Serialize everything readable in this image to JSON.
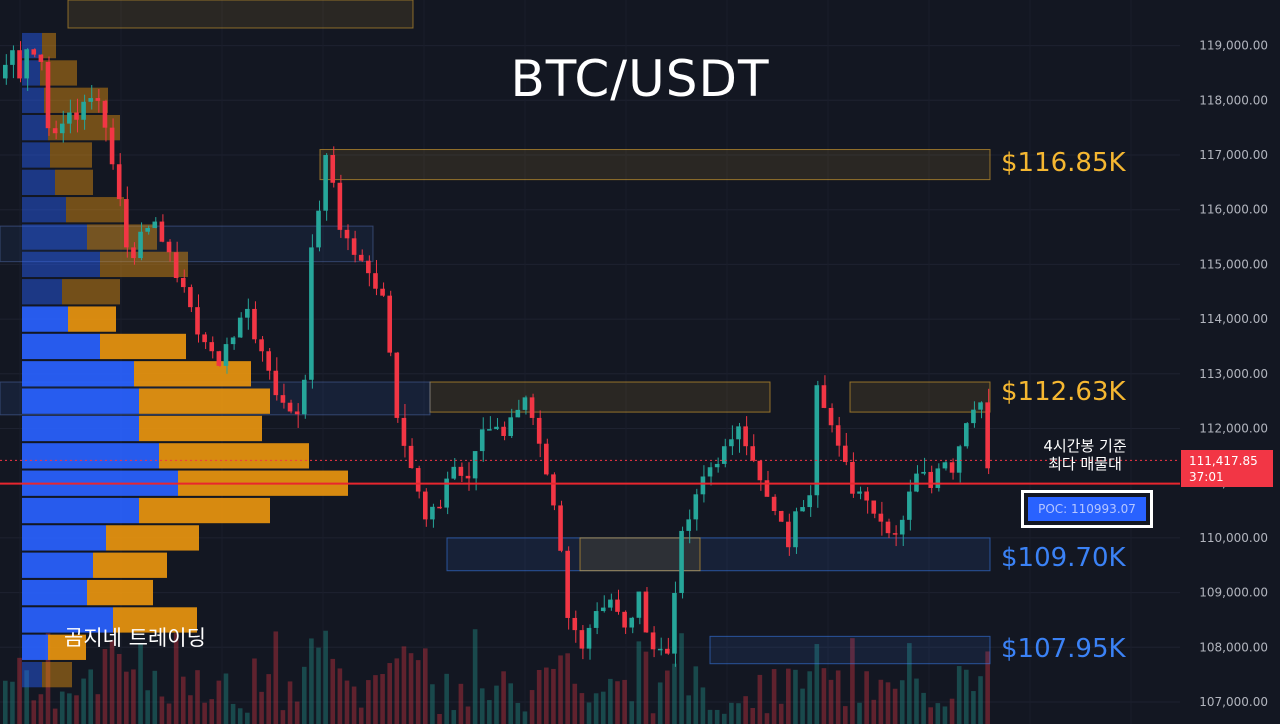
{
  "header": {
    "title": "BTC/USDT"
  },
  "watermark": "곰지네 트레이딩",
  "zones": [
    {
      "label": "$116.85K",
      "color": "#f5b731"
    },
    {
      "label": "$112.63K",
      "color": "#f5b731"
    },
    {
      "label": "$109.70K",
      "color": "#3b82f6"
    },
    {
      "label": "$107.95K",
      "color": "#3b82f6"
    }
  ],
  "annotation": {
    "line1": "4시간봉 기준",
    "line2": "최다 매물대"
  },
  "poc": {
    "label": "POC: 110993.07",
    "value": 110993.07
  },
  "price_tag": {
    "price": "111,417.85",
    "countdown": "37:01"
  },
  "chart_data": {
    "type": "candlestick",
    "symbol": "BTC/USDT",
    "timeframe_note": "4시간봉 기준",
    "y_axis": {
      "ticks": [
        107000,
        108000,
        109000,
        110000,
        111000,
        112000,
        113000,
        114000,
        115000,
        116000,
        117000,
        118000,
        119000
      ],
      "tick_labels": [
        "107,000.00",
        "108,000.00",
        "109,000.00",
        "110,000.00",
        "111,000.00",
        "112,000.00",
        "113,000.00",
        "114,000.00",
        "115,000.00",
        "116,000.00",
        "117,000.00",
        "118,000.00",
        "119,000.00"
      ],
      "range": [
        106600,
        119700
      ]
    },
    "current_price": 111417.85,
    "poc_price": 110993.07,
    "zones": [
      {
        "label": "$116.85K",
        "low": 116550,
        "high": 117100,
        "kind": "resistance"
      },
      {
        "label": "$112.63K",
        "low": 112300,
        "high": 112850,
        "kind": "resistance"
      },
      {
        "label": "$109.70K",
        "low": 109400,
        "high": 110000,
        "kind": "support"
      },
      {
        "label": "$107.95K",
        "low": 107700,
        "high": 108200,
        "kind": "support"
      }
    ],
    "close_path": [
      118400,
      118900,
      118500,
      119000,
      118700,
      117600,
      117300,
      117800,
      117700,
      117900,
      118100,
      117500,
      116900,
      115400,
      115100,
      115600,
      115900,
      115300,
      115100,
      114600,
      114100,
      113800,
      113400,
      113100,
      113600,
      113900,
      114200,
      113700,
      113100,
      112700,
      112400,
      112300,
      113000,
      115200,
      116900,
      116500,
      115700,
      115200,
      115000,
      114800,
      114500,
      113400,
      112300,
      111300,
      110800,
      110300,
      110600,
      111100,
      111300,
      111000,
      111600,
      112000,
      112100,
      111800,
      112300,
      112500,
      112100,
      111600,
      110500,
      109700,
      108500,
      108100,
      108400,
      108700,
      108900,
      108600,
      108300,
      108900,
      108400,
      108000,
      107900,
      109100,
      110000,
      110700,
      111100,
      111300,
      111600,
      111700,
      112100,
      111500,
      111000,
      110700,
      110200,
      109900,
      110400,
      110900,
      112900,
      112500,
      111600,
      111300,
      110900,
      110800,
      110500,
      110300,
      110100,
      110400,
      110900,
      111300,
      111000,
      111400,
      111300,
      111700,
      112200,
      112500,
      111400
    ],
    "volume_profile": [
      {
        "price": 119000,
        "buy": 20,
        "sell": 14
      },
      {
        "price": 118500,
        "buy": 18,
        "sell": 37
      },
      {
        "price": 118000,
        "buy": 22,
        "sell": 64
      },
      {
        "price": 117500,
        "buy": 26,
        "sell": 72
      },
      {
        "price": 117000,
        "buy": 28,
        "sell": 42
      },
      {
        "price": 116500,
        "buy": 33,
        "sell": 38
      },
      {
        "price": 116000,
        "buy": 44,
        "sell": 58
      },
      {
        "price": 115500,
        "buy": 65,
        "sell": 70
      },
      {
        "price": 115000,
        "buy": 78,
        "sell": 88
      },
      {
        "price": 114500,
        "buy": 40,
        "sell": 58
      },
      {
        "price": 114000,
        "buy": 46,
        "sell": 48
      },
      {
        "price": 113500,
        "buy": 78,
        "sell": 86
      },
      {
        "price": 113000,
        "buy": 112,
        "sell": 117
      },
      {
        "price": 112500,
        "buy": 117,
        "sell": 131
      },
      {
        "price": 112000,
        "buy": 117,
        "sell": 123
      },
      {
        "price": 111500,
        "buy": 137,
        "sell": 150
      },
      {
        "price": 111000,
        "buy": 156,
        "sell": 170
      },
      {
        "price": 110500,
        "buy": 117,
        "sell": 131
      },
      {
        "price": 110000,
        "buy": 84,
        "sell": 93
      },
      {
        "price": 109500,
        "buy": 71,
        "sell": 74
      },
      {
        "price": 109000,
        "buy": 65,
        "sell": 66
      },
      {
        "price": 108500,
        "buy": 91,
        "sell": 84
      },
      {
        "price": 108000,
        "buy": 26,
        "sell": 38
      },
      {
        "price": 107500,
        "buy": 20,
        "sell": 30
      }
    ],
    "colors": {
      "up": "#26a69a",
      "down": "#f23645",
      "background": "#131722",
      "zone_gold": "#f5b731",
      "zone_blue": "#3b82f6",
      "profile_buy": "#2962ff",
      "profile_sell": "#e8950f",
      "poc_line": "#e8262e"
    }
  }
}
